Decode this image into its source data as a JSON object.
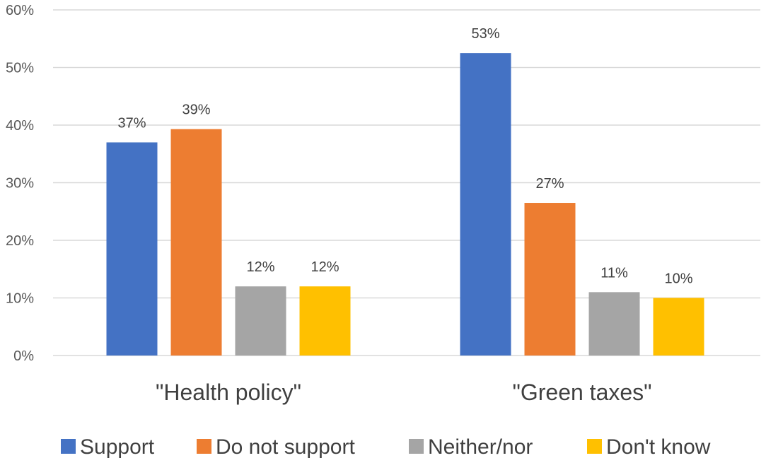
{
  "chart_data": {
    "type": "bar",
    "title": "",
    "xlabel": "",
    "ylabel": "",
    "ylim": [
      0,
      60
    ],
    "y_tick_step": 10,
    "y_tick_format": "percent",
    "grid": true,
    "legend_position": "bottom",
    "categories": [
      "\"Health policy\"",
      "\"Green taxes\""
    ],
    "series": [
      {
        "name": "Support",
        "color": "#4472c4",
        "values": [
          37,
          52.5
        ],
        "labels": [
          "37%",
          "53%"
        ]
      },
      {
        "name": "Do not support",
        "color": "#ed7d31",
        "values": [
          39.3,
          26.5
        ],
        "labels": [
          "39%",
          "27%"
        ]
      },
      {
        "name": "Neither/nor",
        "color": "#a5a5a5",
        "values": [
          12,
          11
        ],
        "labels": [
          "12%",
          "11%"
        ]
      },
      {
        "name": "Don't know",
        "color": "#ffc000",
        "values": [
          12,
          10
        ],
        "labels": [
          "12%",
          "10%"
        ]
      }
    ]
  }
}
